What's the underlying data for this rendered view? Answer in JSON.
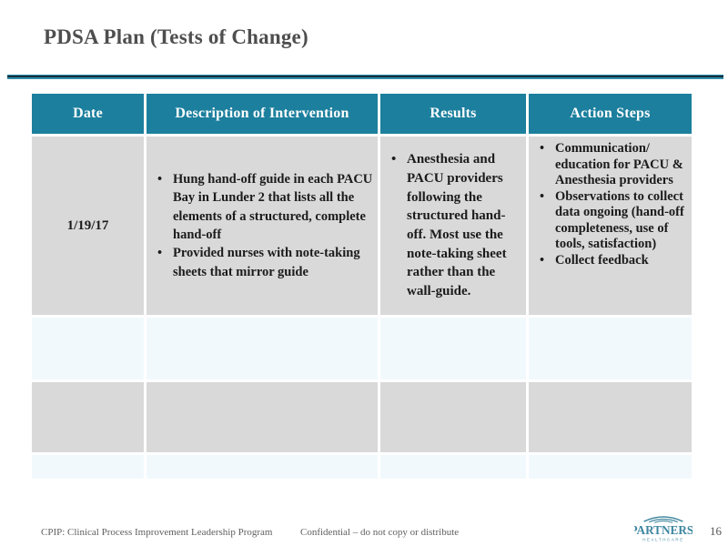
{
  "title": "PDSA Plan (Tests of Change)",
  "table": {
    "headers": [
      "Date",
      "Description of Intervention",
      "Results",
      "Action Steps"
    ],
    "rows": [
      {
        "date": "1/19/17",
        "description": [
          "Hung hand-off guide in each PACU Bay in Lunder 2 that lists all the elements of a structured, complete hand-off",
          "Provided nurses with note-taking sheets that mirror guide"
        ],
        "results": [
          "Anesthesia and PACU providers following the structured hand-off. Most use the note-taking sheet rather than the wall-guide."
        ],
        "action_steps": [
          "Communication/ education for PACU & Anesthesia providers",
          "Observations to collect data ongoing (hand-off completeness, use of tools, satisfaction)",
          "Collect feedback"
        ]
      }
    ],
    "empty_row_count": 3
  },
  "footer": {
    "left_text": "CPIP: Clinical Process Improvement Leadership Program",
    "center_text": "Confidential – do not copy or distribute",
    "page_number": "16",
    "logo_name": "PARTNERS.",
    "logo_subname": "HEALTHCARE"
  },
  "colors": {
    "header_teal": "#1c7f9d",
    "band_gray": "#d9d9d9",
    "band_light": "#f2f9fd",
    "rule_teal": "#2f8dab",
    "rule_dark": "#14303c",
    "logo_teal": "#42889f",
    "title_gray": "#4e4e4e"
  }
}
